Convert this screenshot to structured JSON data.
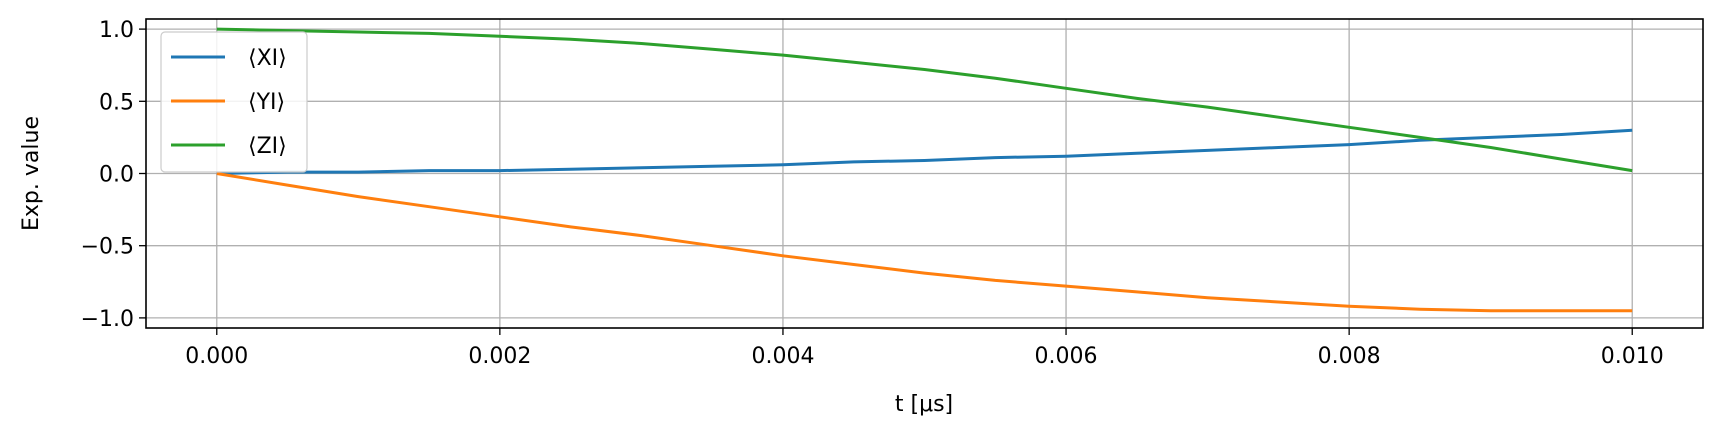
{
  "chart_data": {
    "type": "line",
    "xlabel": "t [μs]",
    "ylabel": "Exp. value",
    "xlim": [
      -0.0005,
      0.0105
    ],
    "ylim": [
      -1.07,
      1.07
    ],
    "xticks": [
      0.0,
      0.002,
      0.004,
      0.006,
      0.008,
      0.01
    ],
    "xtick_labels": [
      "0.000",
      "0.002",
      "0.004",
      "0.006",
      "0.008",
      "0.010"
    ],
    "yticks": [
      -1.0,
      -0.5,
      0.0,
      0.5,
      1.0
    ],
    "ytick_labels": [
      "−1.0",
      "−0.5",
      "0.0",
      "0.5",
      "1.0"
    ],
    "grid": true,
    "legend_position": "top-left",
    "x": [
      0.0,
      0.0005,
      0.001,
      0.0015,
      0.002,
      0.0025,
      0.003,
      0.0035,
      0.004,
      0.0045,
      0.005,
      0.0055,
      0.006,
      0.0065,
      0.007,
      0.0075,
      0.008,
      0.0085,
      0.009,
      0.0095,
      0.01
    ],
    "series": [
      {
        "name": "⟨XI⟩",
        "color": "#1f77b4",
        "values": [
          0.0,
          0.01,
          0.01,
          0.02,
          0.02,
          0.03,
          0.04,
          0.05,
          0.06,
          0.08,
          0.09,
          0.11,
          0.12,
          0.14,
          0.16,
          0.18,
          0.2,
          0.23,
          0.25,
          0.27,
          0.3
        ]
      },
      {
        "name": "⟨YI⟩",
        "color": "#ff7f0e",
        "values": [
          0.0,
          -0.08,
          -0.16,
          -0.23,
          -0.3,
          -0.37,
          -0.43,
          -0.5,
          -0.57,
          -0.63,
          -0.69,
          -0.74,
          -0.78,
          -0.82,
          -0.86,
          -0.89,
          -0.92,
          -0.94,
          -0.95,
          -0.95,
          -0.95
        ]
      },
      {
        "name": "⟨ZI⟩",
        "color": "#2ca02c",
        "values": [
          1.0,
          0.99,
          0.98,
          0.97,
          0.95,
          0.93,
          0.9,
          0.86,
          0.82,
          0.77,
          0.72,
          0.66,
          0.59,
          0.52,
          0.46,
          0.39,
          0.32,
          0.25,
          0.18,
          0.1,
          0.02
        ]
      }
    ]
  }
}
